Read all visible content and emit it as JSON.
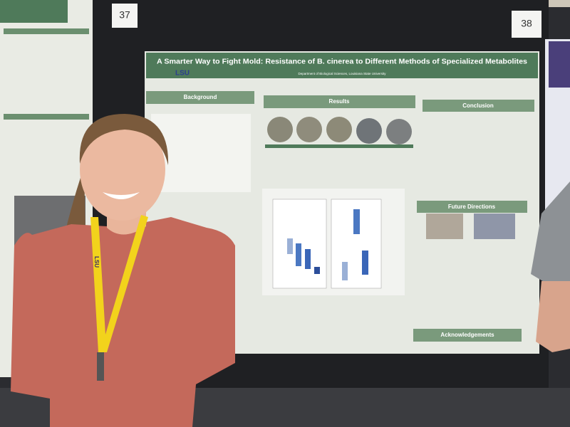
{
  "board_numbers": [
    "37",
    "38"
  ],
  "poster": {
    "title": "A Smarter Way to Fight Mold: Resistance of B. cinerea to Different Methods of Specialized Metabolites",
    "logo": "LSU",
    "affiliation": "Department of Biological Sciences, Louisiana State University",
    "sections": [
      "Background",
      "Results",
      "Conclusion",
      "Future Directions",
      "Acknowledgements"
    ]
  },
  "lanyard": "LSU"
}
